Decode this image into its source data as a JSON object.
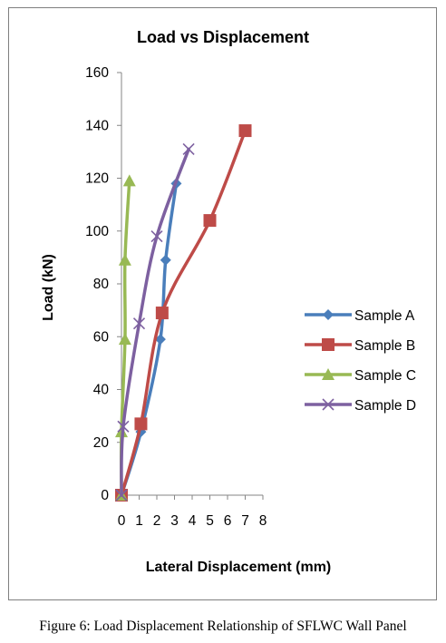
{
  "chart_data": {
    "type": "line",
    "title": "Load vs Displacement",
    "xlabel": "Lateral Displacement (mm)",
    "ylabel": "Load (kN)",
    "xlim": [
      0,
      8
    ],
    "ylim": [
      0,
      160
    ],
    "x_ticks": [
      "0",
      "1",
      "2",
      "3",
      "4",
      "5",
      "6",
      "7",
      "8"
    ],
    "y_ticks": [
      "0",
      "20",
      "40",
      "60",
      "80",
      "100",
      "120",
      "140",
      "160"
    ],
    "grid": false,
    "legend_position": "right",
    "series": [
      {
        "name": "Sample A",
        "color": "#4a7ebb",
        "marker": "diamond",
        "x": [
          0,
          1.1,
          2.2,
          2.5,
          3.1
        ],
        "y": [
          0,
          24,
          59,
          89,
          118
        ]
      },
      {
        "name": "Sample B",
        "color": "#be4b48",
        "marker": "square",
        "x": [
          0,
          1.1,
          2.3,
          5.0,
          7.0
        ],
        "y": [
          0,
          27,
          69,
          104,
          138
        ]
      },
      {
        "name": "Sample C",
        "color": "#98b954",
        "marker": "triangle",
        "x": [
          0,
          0.0,
          0.2,
          0.2,
          0.45
        ],
        "y": [
          0,
          24,
          59,
          89,
          119
        ]
      },
      {
        "name": "Sample D",
        "color": "#7d60a0",
        "marker": "x",
        "x": [
          0,
          0.1,
          1.0,
          2.0,
          3.8
        ],
        "y": [
          0,
          26,
          65,
          98,
          131
        ]
      }
    ]
  },
  "caption": "Figure 6: Load Displacement Relationship of SFLWC Wall Panel"
}
